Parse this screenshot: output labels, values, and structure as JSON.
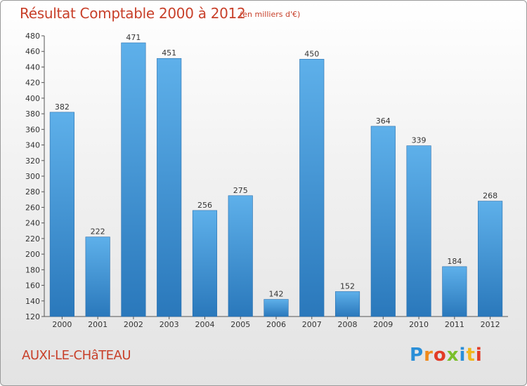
{
  "header": {
    "title": "Résultat Comptable 2000 à 2012",
    "subtitle": "(en milliers d'€)"
  },
  "footer": {
    "commune": "AUXI-LE-CHâTEAU",
    "logo": "Proxiti"
  },
  "chart_data": {
    "type": "bar",
    "title": "Résultat Comptable 2000 à 2012",
    "subtitle": "(en milliers d'€)",
    "xlabel": "",
    "ylabel": "",
    "categories": [
      "2000",
      "2001",
      "2002",
      "2003",
      "2004",
      "2005",
      "2006",
      "2007",
      "2008",
      "2009",
      "2010",
      "2011",
      "2012"
    ],
    "values": [
      382,
      222,
      471,
      451,
      256,
      275,
      142,
      450,
      152,
      364,
      339,
      184,
      268
    ],
    "ylim": [
      120,
      480
    ],
    "yticks": [
      120,
      140,
      160,
      180,
      200,
      220,
      240,
      260,
      280,
      300,
      320,
      340,
      360,
      380,
      400,
      420,
      440,
      460,
      480
    ],
    "grid": false,
    "bar_color": "#3a8fd0"
  }
}
